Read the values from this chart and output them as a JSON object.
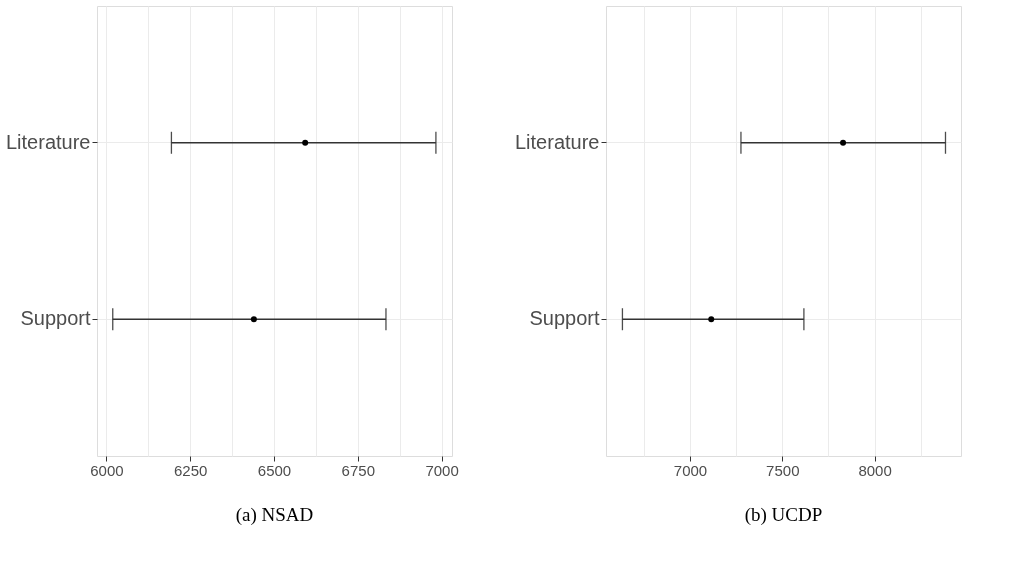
{
  "chart_data": [
    {
      "type": "scatter",
      "orientation": "horizontal",
      "title": "(a) NSAD",
      "categories": [
        "Literature",
        "Support"
      ],
      "values": [
        6593,
        6440
      ],
      "errors": [
        [
          6194,
          6983
        ],
        [
          6019,
          6834
        ]
      ],
      "color": "#000000",
      "xlim": [
        5972,
        7031
      ],
      "xticks": [
        6000,
        {
          "value": 6125,
          "label": null
        },
        6250,
        {
          "value": 6375,
          "label": null
        },
        6500,
        {
          "value": 6625,
          "label": null
        },
        6750,
        {
          "value": 6875,
          "label": null
        },
        7000
      ],
      "grid": true,
      "marker": "circle"
    },
    {
      "type": "scatter",
      "orientation": "horizontal",
      "title": "(b) UCDP",
      "categories": [
        "Literature",
        "Support"
      ],
      "values": [
        7829,
        7115
      ],
      "errors": [
        [
          7276,
          8384
        ],
        [
          6634,
          7617
        ]
      ],
      "color": "#000000",
      "xlim": [
        6545,
        8468
      ],
      "xticks": [
        {
          "value": 6750,
          "label": null
        },
        7000,
        {
          "value": 7250,
          "label": null
        },
        7500,
        {
          "value": 7750,
          "label": null
        },
        8000,
        {
          "value": 8250,
          "label": null
        }
      ],
      "grid": true,
      "marker": "circle"
    }
  ]
}
